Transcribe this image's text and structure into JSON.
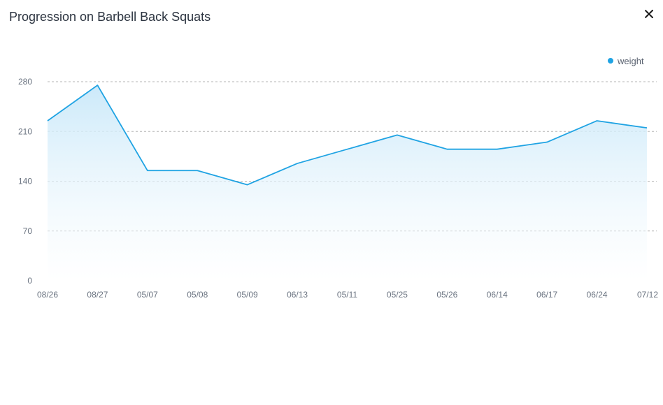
{
  "dialog": {
    "title": "Progression on Barbell Back Squats",
    "close_icon": "close-icon"
  },
  "colors": {
    "line": "#1fa3e3",
    "fill_top": "#c9e8f9",
    "grid": "#b5b5b5",
    "title": "#2c3440"
  },
  "chart_data": {
    "type": "area",
    "title": "",
    "xlabel": "",
    "ylabel": "",
    "categories": [
      "08/26",
      "08/27",
      "05/07",
      "05/08",
      "05/09",
      "06/13",
      "05/11",
      "05/25",
      "05/26",
      "06/14",
      "06/17",
      "06/24",
      "07/12"
    ],
    "series": [
      {
        "name": "weight",
        "values": [
          225,
          275,
          155,
          155,
          135,
          165,
          185,
          205,
          185,
          185,
          195,
          225,
          215
        ]
      }
    ],
    "ylim": [
      0,
      280
    ],
    "yticks": [
      "0",
      "70",
      "140",
      "210",
      "280"
    ],
    "grid": true,
    "legend": "top-right"
  }
}
